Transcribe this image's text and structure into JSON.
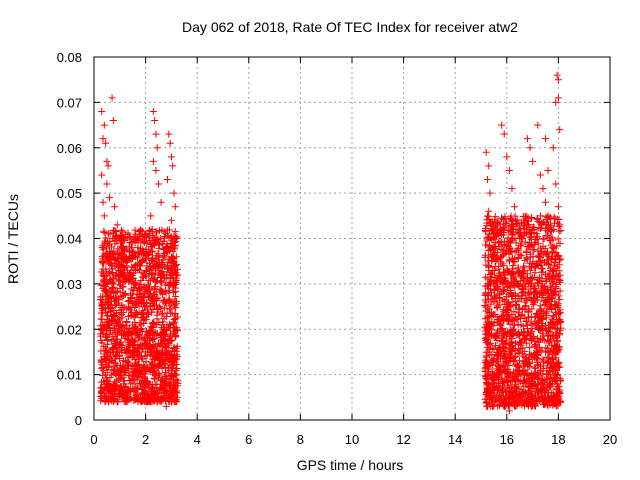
{
  "chart_data": {
    "type": "scatter",
    "title": "Day 062 of 2018, Rate Of TEC Index for receiver atw2",
    "xlabel": "GPS time / hours",
    "ylabel": "ROTI / TECUs",
    "xlim": [
      0,
      20
    ],
    "ylim": [
      0,
      0.08
    ],
    "xticks": [
      "0",
      "2",
      "4",
      "6",
      "8",
      "10",
      "12",
      "14",
      "16",
      "18",
      "20"
    ],
    "yticks": [
      "0",
      "0.01",
      "0.02",
      "0.03",
      "0.04",
      "0.05",
      "0.06",
      "0.07",
      "0.08"
    ],
    "grid": true,
    "marker": "+",
    "colors": {
      "points": "#ff0000",
      "grid": "#a0a0a0",
      "axes": "#000000"
    },
    "series": [
      {
        "name": "ROTI",
        "points": [
          [
            0.3,
            0.068
          ],
          [
            0.35,
            0.062
          ],
          [
            0.4,
            0.065
          ],
          [
            0.45,
            0.061
          ],
          [
            0.5,
            0.057
          ],
          [
            0.55,
            0.056
          ],
          [
            0.7,
            0.071
          ],
          [
            0.75,
            0.066
          ],
          [
            0.3,
            0.054
          ],
          [
            0.35,
            0.048
          ],
          [
            0.4,
            0.045
          ],
          [
            0.5,
            0.052
          ],
          [
            0.6,
            0.049
          ],
          [
            0.8,
            0.047
          ],
          [
            0.9,
            0.043
          ],
          [
            1.0,
            0.04
          ],
          [
            1.1,
            0.038
          ],
          [
            1.2,
            0.036
          ],
          [
            1.3,
            0.033
          ],
          [
            1.4,
            0.031
          ],
          [
            0.3,
            0.006
          ],
          [
            0.5,
            0.008
          ],
          [
            0.7,
            0.005
          ],
          [
            0.9,
            0.004
          ],
          [
            1.1,
            0.005
          ],
          [
            1.3,
            0.006
          ],
          [
            1.5,
            0.007
          ],
          [
            1.7,
            0.005
          ],
          [
            1.9,
            0.006
          ],
          [
            2.1,
            0.005
          ],
          [
            2.3,
            0.068
          ],
          [
            2.35,
            0.066
          ],
          [
            2.4,
            0.063
          ],
          [
            2.45,
            0.06
          ],
          [
            2.3,
            0.057
          ],
          [
            2.4,
            0.055
          ],
          [
            2.5,
            0.052
          ],
          [
            2.6,
            0.048
          ],
          [
            2.2,
            0.045
          ],
          [
            2.25,
            0.042
          ],
          [
            2.9,
            0.063
          ],
          [
            2.95,
            0.061
          ],
          [
            3.0,
            0.058
          ],
          [
            3.05,
            0.056
          ],
          [
            2.85,
            0.053
          ],
          [
            3.1,
            0.05
          ],
          [
            3.15,
            0.047
          ],
          [
            3.0,
            0.044
          ],
          [
            3.2,
            0.04
          ],
          [
            2.8,
            0.038
          ],
          [
            2.2,
            0.004
          ],
          [
            2.4,
            0.005
          ],
          [
            2.6,
            0.004
          ],
          [
            2.8,
            0.003
          ],
          [
            3.0,
            0.004
          ],
          [
            3.2,
            0.006
          ],
          [
            1.8,
            0.008
          ],
          [
            1.6,
            0.012
          ],
          [
            1.4,
            0.015
          ],
          [
            1.2,
            0.018
          ],
          [
            15.2,
            0.059
          ],
          [
            15.3,
            0.056
          ],
          [
            15.25,
            0.053
          ],
          [
            15.35,
            0.05
          ],
          [
            15.3,
            0.046
          ],
          [
            15.4,
            0.043
          ],
          [
            15.2,
            0.026
          ],
          [
            15.3,
            0.02
          ],
          [
            15.25,
            0.016
          ],
          [
            15.35,
            0.012
          ],
          [
            15.3,
            0.008
          ],
          [
            15.4,
            0.005
          ],
          [
            15.2,
            0.004
          ],
          [
            15.8,
            0.065
          ],
          [
            15.9,
            0.063
          ],
          [
            16.0,
            0.058
          ],
          [
            16.1,
            0.055
          ],
          [
            16.2,
            0.051
          ],
          [
            16.3,
            0.047
          ],
          [
            16.4,
            0.044
          ],
          [
            16.5,
            0.04
          ],
          [
            15.9,
            0.003
          ],
          [
            16.1,
            0.002
          ],
          [
            16.3,
            0.004
          ],
          [
            16.5,
            0.005
          ],
          [
            16.8,
            0.062
          ],
          [
            16.9,
            0.06
          ],
          [
            17.0,
            0.057
          ],
          [
            17.2,
            0.065
          ],
          [
            17.3,
            0.054
          ],
          [
            17.4,
            0.051
          ],
          [
            17.5,
            0.048
          ],
          [
            17.6,
            0.045
          ],
          [
            17.7,
            0.042
          ],
          [
            17.5,
            0.062
          ],
          [
            17.6,
            0.055
          ],
          [
            17.8,
            0.06
          ],
          [
            17.9,
            0.07
          ],
          [
            17.95,
            0.076
          ],
          [
            18.0,
            0.075
          ],
          [
            18.0,
            0.071
          ],
          [
            18.05,
            0.064
          ],
          [
            17.9,
            0.052
          ],
          [
            18.0,
            0.047
          ],
          [
            18.05,
            0.043
          ],
          [
            16.6,
            0.006
          ],
          [
            16.8,
            0.005
          ],
          [
            17.0,
            0.004
          ],
          [
            17.2,
            0.005
          ],
          [
            17.4,
            0.004
          ],
          [
            17.6,
            0.006
          ],
          [
            17.8,
            0.005
          ],
          [
            18.0,
            0.004
          ],
          [
            18.05,
            0.006
          ]
        ],
        "dense_regions": [
          {
            "x_range": [
              0.25,
              3.25
            ],
            "y_range": [
              0.004,
              0.042
            ],
            "approx_points": 1700
          },
          {
            "x_range": [
              15.15,
              18.1
            ],
            "y_range": [
              0.003,
              0.045
            ],
            "approx_points": 1700
          }
        ]
      }
    ]
  }
}
